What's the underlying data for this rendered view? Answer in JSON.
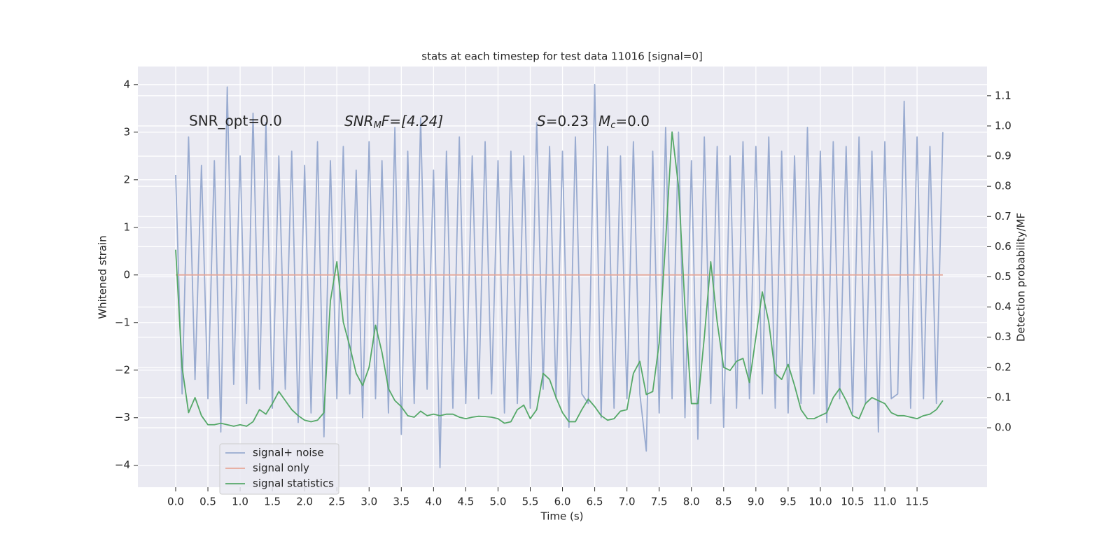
{
  "chart_data": {
    "type": "line",
    "title": "stats at each timestep for test data 11016 [signal=0]",
    "xlabel": "Time (s)",
    "ylabel": "Whitened strain",
    "y2label": "Detection probability/MF",
    "annotations": [
      "SNR_opt=0.0",
      "SNR",
      "M",
      "F=[4.24]",
      "S",
      "=0.23",
      "M",
      "c",
      "=0.0"
    ],
    "grid": true,
    "legend": "lower left",
    "xlim": [
      -0.586,
      12.585
    ],
    "xticks": [
      {
        "value": 0,
        "label": "0.0"
      },
      0.5,
      {
        "value": 1,
        "label": "1.0"
      },
      1.5,
      {
        "value": 2,
        "label": "2.0"
      },
      2.5,
      {
        "value": 3,
        "label": "3.0"
      },
      3.5,
      {
        "value": 4,
        "label": "4.0"
      },
      4.5,
      {
        "value": 5,
        "label": "5.0"
      },
      5.5,
      {
        "value": 6,
        "label": "6.0"
      },
      6.5,
      {
        "value": 7,
        "label": "7.0"
      },
      7.5,
      {
        "value": 8,
        "label": "8.0"
      },
      8.5,
      {
        "value": 9,
        "label": "9.0"
      },
      9.5,
      {
        "value": 10,
        "label": "10.0"
      },
      10.5,
      {
        "value": 11,
        "label": "11.0"
      },
      11.5
    ],
    "ylim": [
      -4.46,
      4.38
    ],
    "yticks": [
      {
        "value": -4,
        "label": "−4"
      },
      {
        "value": -3,
        "label": "−3"
      },
      {
        "value": -2,
        "label": "−2"
      },
      {
        "value": -1,
        "label": "−1"
      },
      0,
      1,
      2,
      3,
      4
    ],
    "y2lim": [
      -0.197,
      1.197
    ],
    "y2ticks": [
      {
        "value": 0,
        "label": "0.0"
      },
      0.1,
      0.2,
      0.3,
      0.4,
      0.5,
      0.6,
      0.7,
      0.8,
      0.9,
      {
        "value": 1,
        "label": "1.0"
      },
      1.1
    ],
    "x": [
      0.0,
      0.1,
      0.2,
      0.3,
      0.4,
      0.5,
      0.6,
      0.7,
      0.8,
      0.9,
      1.0,
      1.1,
      1.2,
      1.3,
      1.4,
      1.5,
      1.6,
      1.7,
      1.8,
      1.9,
      2.0,
      2.1,
      2.2,
      2.3,
      2.4,
      2.5,
      2.6,
      2.7,
      2.8,
      2.9,
      3.0,
      3.1,
      3.2,
      3.3,
      3.4,
      3.5,
      3.6,
      3.7,
      3.8,
      3.9,
      4.0,
      4.1,
      4.2,
      4.3,
      4.4,
      4.5,
      4.6,
      4.7,
      4.8,
      4.9,
      5.0,
      5.1,
      5.2,
      5.3,
      5.4,
      5.5,
      5.6,
      5.7,
      5.8,
      5.9,
      6.0,
      6.1,
      6.2,
      6.3,
      6.4,
      6.5,
      6.6,
      6.7,
      6.8,
      6.9,
      7.0,
      7.1,
      7.2,
      7.3,
      7.4,
      7.5,
      7.6,
      7.7,
      7.8,
      7.9,
      8.0,
      8.1,
      8.2,
      8.3,
      8.4,
      8.5,
      8.6,
      8.7,
      8.8,
      8.9,
      9.0,
      9.1,
      9.2,
      9.3,
      9.4,
      9.5,
      9.6,
      9.7,
      9.8,
      9.9,
      10.0,
      10.1,
      10.2,
      10.3,
      10.4,
      10.5,
      10.6,
      10.7,
      10.8,
      10.9,
      11.0,
      11.1,
      11.2,
      11.3,
      11.4,
      11.5,
      11.6,
      11.7,
      11.8,
      11.9
    ],
    "series": [
      {
        "name": "signal+ noise",
        "color": "#99abd0",
        "values": [
          2.1,
          -2.5,
          2.9,
          -2.2,
          2.3,
          -2.6,
          2.4,
          -3.3,
          3.95,
          -2.3,
          2.5,
          -2.7,
          3.4,
          -2.4,
          3.2,
          -2.8,
          2.5,
          -2.4,
          2.6,
          -3.1,
          2.3,
          -2.9,
          2.8,
          -3.4,
          2.4,
          -2.6,
          2.7,
          -2.5,
          2.2,
          -3.0,
          2.8,
          -2.6,
          2.4,
          -2.9,
          3.1,
          -3.35,
          2.6,
          -2.7,
          3.3,
          -2.4,
          2.2,
          -4.05,
          2.6,
          -2.8,
          2.9,
          -2.7,
          2.5,
          -2.6,
          2.8,
          -2.5,
          2.4,
          -2.9,
          2.6,
          -2.7,
          2.5,
          -2.8,
          3.2,
          -2.4,
          2.7,
          -2.6,
          2.6,
          -3.2,
          2.9,
          -2.5,
          -2.7,
          4.0,
          -3.0,
          2.7,
          -2.8,
          2.5,
          -2.6,
          2.8,
          -2.5,
          -3.7,
          2.6,
          -2.9,
          3.1,
          -2.6,
          3.0,
          -3.0,
          2.4,
          -3.45,
          2.9,
          -2.7,
          2.7,
          -3.2,
          2.5,
          -2.8,
          2.8,
          -2.6,
          2.7,
          -2.5,
          2.9,
          -2.8,
          2.6,
          -2.9,
          2.5,
          -2.7,
          3.1,
          -2.5,
          2.6,
          -3.1,
          2.8,
          -2.6,
          2.7,
          -2.9,
          2.9,
          -2.7,
          2.6,
          -3.3,
          2.8,
          -2.6,
          -2.5,
          3.65,
          -2.8,
          2.9,
          -2.6,
          2.7,
          -2.7,
          3.0
        ]
      },
      {
        "name": "signal only",
        "color": "#e8a898",
        "values": [
          0,
          0,
          0,
          0,
          0,
          0,
          0,
          0,
          0,
          0,
          0,
          0,
          0,
          0,
          0,
          0,
          0,
          0,
          0,
          0,
          0,
          0,
          0,
          0,
          0,
          0,
          0,
          0,
          0,
          0,
          0,
          0,
          0,
          0,
          0,
          0,
          0,
          0,
          0,
          0,
          0,
          0,
          0,
          0,
          0,
          0,
          0,
          0,
          0,
          0,
          0,
          0,
          0,
          0,
          0,
          0,
          0,
          0,
          0,
          0,
          0,
          0,
          0,
          0,
          0,
          0,
          0,
          0,
          0,
          0,
          0,
          0,
          0,
          0,
          0,
          0,
          0,
          0,
          0,
          0,
          0,
          0,
          0,
          0,
          0,
          0,
          0,
          0,
          0,
          0,
          0,
          0,
          0,
          0,
          0,
          0,
          0,
          0,
          0,
          0,
          0,
          0,
          0,
          0,
          0,
          0,
          0,
          0,
          0,
          0,
          0,
          0,
          0,
          0,
          0,
          0,
          0,
          0,
          0,
          0
        ]
      },
      {
        "name": "signal statistics",
        "color": "#55a868",
        "axis": "y2",
        "values": [
          0.59,
          0.2,
          0.05,
          0.1,
          0.04,
          0.01,
          0.01,
          0.015,
          0.01,
          0.005,
          0.01,
          0.005,
          0.02,
          0.06,
          0.045,
          0.08,
          0.12,
          0.09,
          0.06,
          0.04,
          0.025,
          0.02,
          0.025,
          0.05,
          0.42,
          0.55,
          0.35,
          0.27,
          0.18,
          0.14,
          0.2,
          0.34,
          0.25,
          0.13,
          0.09,
          0.07,
          0.04,
          0.035,
          0.055,
          0.04,
          0.045,
          0.04,
          0.045,
          0.045,
          0.035,
          0.03,
          0.035,
          0.038,
          0.037,
          0.035,
          0.03,
          0.015,
          0.02,
          0.06,
          0.075,
          0.03,
          0.06,
          0.18,
          0.16,
          0.1,
          0.05,
          0.02,
          0.02,
          0.06,
          0.095,
          0.07,
          0.04,
          0.025,
          0.03,
          0.055,
          0.06,
          0.18,
          0.22,
          0.11,
          0.12,
          0.28,
          0.62,
          0.98,
          0.8,
          0.4,
          0.08,
          0.08,
          0.3,
          0.55,
          0.35,
          0.2,
          0.19,
          0.22,
          0.23,
          0.15,
          0.3,
          0.45,
          0.35,
          0.18,
          0.16,
          0.21,
          0.14,
          0.06,
          0.03,
          0.03,
          0.04,
          0.05,
          0.1,
          0.13,
          0.09,
          0.04,
          0.03,
          0.08,
          0.1,
          0.09,
          0.08,
          0.05,
          0.04,
          0.04,
          0.035,
          0.03,
          0.04,
          0.045,
          0.06,
          0.09
        ]
      }
    ]
  }
}
